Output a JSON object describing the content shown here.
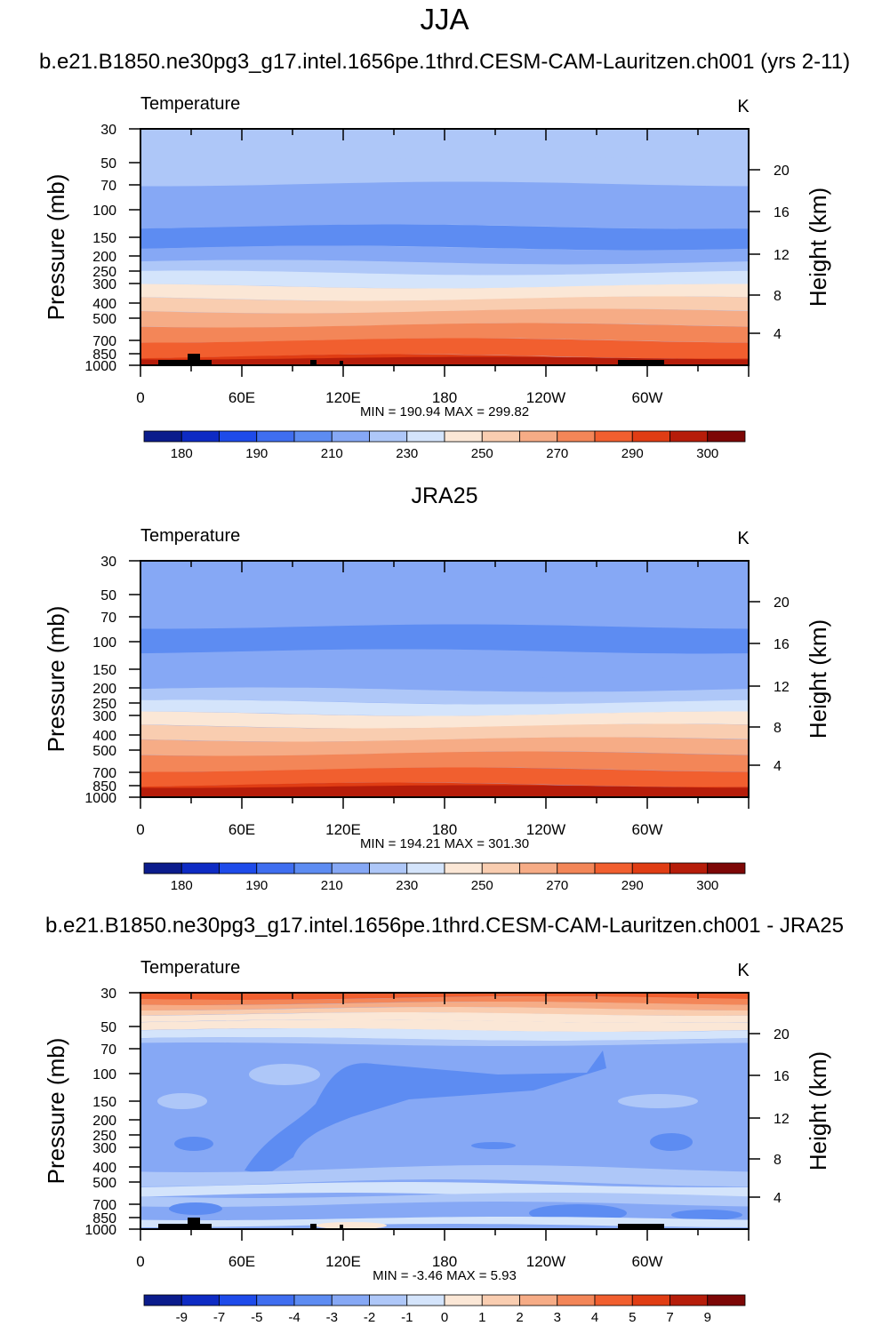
{
  "main_title": "JJA",
  "chart_data": [
    {
      "type": "heatmap",
      "title": "b.e21.B1850.ne30pg3_g17.intel.1656pe.1thrd.CESM-CAM-Lauritzen.ch001 (yrs 2-11)",
      "left_label": "Temperature",
      "units": "K",
      "ylabel": "Pressure (mb)",
      "y2label": "Height (km)",
      "xlabel": "",
      "x_ticks": [
        "0",
        "60E",
        "120E",
        "180",
        "120W",
        "60W"
      ],
      "y_ticks": [
        "30",
        "50",
        "70",
        "100",
        "150",
        "200",
        "250",
        "300",
        "400",
        "500",
        "700",
        "850",
        "1000"
      ],
      "y2_ticks": [
        "20",
        "16",
        "12",
        "8",
        "4"
      ],
      "stats": "MIN = 190.94   MAX = 299.82",
      "min": 190.94,
      "max": 299.82,
      "colorbar_labels": [
        "180",
        "190",
        "210",
        "230",
        "250",
        "270",
        "290",
        "300"
      ],
      "topography": true
    },
    {
      "type": "heatmap",
      "title": "JRA25",
      "left_label": "Temperature",
      "units": "K",
      "ylabel": "Pressure (mb)",
      "y2label": "Height (km)",
      "xlabel": "",
      "x_ticks": [
        "0",
        "60E",
        "120E",
        "180",
        "120W",
        "60W"
      ],
      "y_ticks": [
        "30",
        "50",
        "70",
        "100",
        "150",
        "200",
        "250",
        "300",
        "400",
        "500",
        "700",
        "850",
        "1000"
      ],
      "y2_ticks": [
        "20",
        "16",
        "12",
        "8",
        "4"
      ],
      "stats": "MIN = 194.21   MAX = 301.30",
      "min": 194.21,
      "max": 301.3,
      "colorbar_labels": [
        "180",
        "190",
        "210",
        "230",
        "250",
        "270",
        "290",
        "300"
      ],
      "topography": false
    },
    {
      "type": "heatmap",
      "title": "b.e21.B1850.ne30pg3_g17.intel.1656pe.1thrd.CESM-CAM-Lauritzen.ch001 - JRA25",
      "left_label": "Temperature",
      "units": "K",
      "ylabel": "Pressure (mb)",
      "y2label": "Height (km)",
      "xlabel": "",
      "x_ticks": [
        "0",
        "60E",
        "120E",
        "180",
        "120W",
        "60W"
      ],
      "y_ticks": [
        "30",
        "50",
        "70",
        "100",
        "150",
        "200",
        "250",
        "300",
        "400",
        "500",
        "700",
        "850",
        "1000"
      ],
      "y2_ticks": [
        "20",
        "16",
        "12",
        "8",
        "4"
      ],
      "stats": "MIN =  -3.46   MAX =   5.93",
      "min": -3.46,
      "max": 5.93,
      "colorbar_labels": [
        "-9",
        "-7",
        "-5",
        "-4",
        "-3",
        "-2",
        "-1",
        "0",
        "1",
        "2",
        "3",
        "4",
        "5",
        "7",
        "9"
      ],
      "topography": true
    }
  ],
  "colors": {
    "temp_scale": [
      "#0b1c8c",
      "#0e2bc4",
      "#1e4bea",
      "#3f6ef0",
      "#5d8cf2",
      "#86a8f5",
      "#aec7f8",
      "#d4e4fb",
      "#fbe7d6",
      "#f9cdb0",
      "#f6ac86",
      "#f38658",
      "#f15f2f",
      "#e03d14",
      "#b61d0a",
      "#7d0706"
    ],
    "diff_scale": [
      "#0b1c8c",
      "#0e2bc4",
      "#1e4bea",
      "#3f6ef0",
      "#5d8cf2",
      "#86a8f5",
      "#aec7f8",
      "#d4e4fb",
      "#fbe7d6",
      "#f9cdb0",
      "#f6ac86",
      "#f38658",
      "#f15f2f",
      "#e03d14",
      "#b61d0a",
      "#7d0706"
    ],
    "topography": "#000000"
  }
}
